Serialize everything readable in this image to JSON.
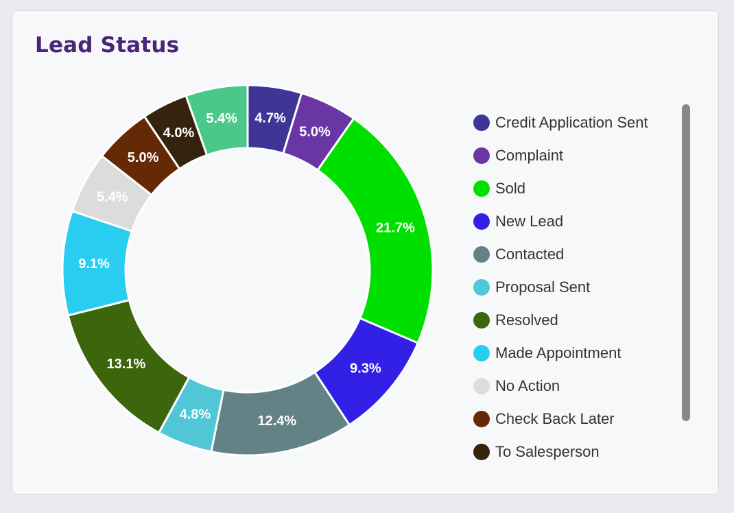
{
  "card": {
    "title": "Lead Status"
  },
  "chart_data": {
    "type": "pie",
    "title": "Lead Status",
    "slices": [
      {
        "label": "Credit Application Sent",
        "value": 4.7,
        "display": "4.7%",
        "color": "#3f3596"
      },
      {
        "label": "Complaint",
        "value": 5.0,
        "display": "5.0%",
        "color": "#6a36a4"
      },
      {
        "label": "Sold",
        "value": 21.7,
        "display": "21.7%",
        "color": "#00e000"
      },
      {
        "label": "New Lead",
        "value": 9.3,
        "display": "9.3%",
        "color": "#3320e6"
      },
      {
        "label": "Contacted",
        "value": 12.4,
        "display": "12.4%",
        "color": "#638285"
      },
      {
        "label": "Proposal Sent",
        "value": 4.8,
        "display": "4.8%",
        "color": "#50c6d6"
      },
      {
        "label": "Resolved",
        "value": 13.1,
        "display": "13.1%",
        "color": "#3d650c"
      },
      {
        "label": "Made Appointment",
        "value": 9.1,
        "display": "9.1%",
        "color": "#29cdf0"
      },
      {
        "label": "No Action",
        "value": 5.4,
        "display": "5.4%",
        "color": "#dcdcdc"
      },
      {
        "label": "Check Back Later",
        "value": 5.0,
        "display": "5.0%",
        "color": "#662905"
      },
      {
        "label": "To Salesperson",
        "value": 4.0,
        "display": "4.0%",
        "color": "#35230d"
      },
      {
        "label": "",
        "value": 5.4,
        "display": "5.4%",
        "color": "#4ac88a"
      }
    ],
    "legend_position": "right"
  }
}
